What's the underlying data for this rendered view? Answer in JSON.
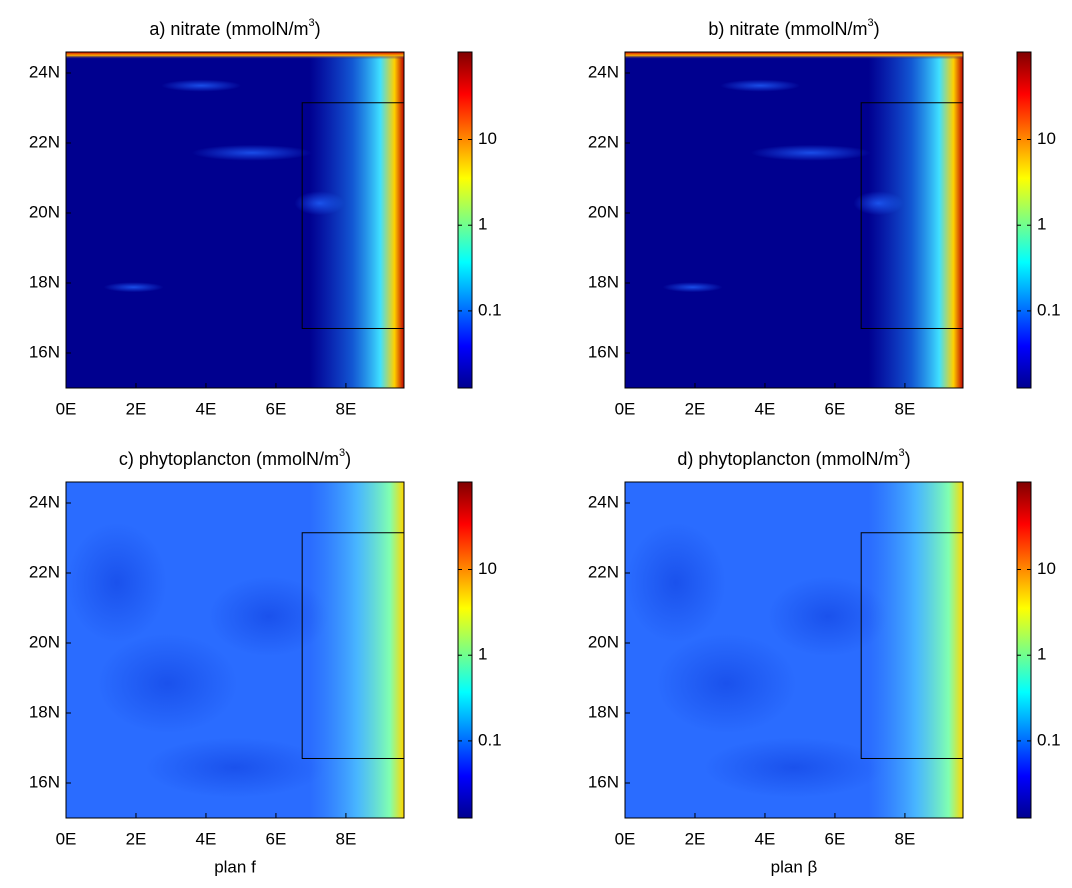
{
  "chart_data": [
    {
      "type": "heatmap",
      "title": "a) nitrate (mmolN/m",
      "title_sup": "3",
      "title_end": ")",
      "xlim": [
        0,
        9.66
      ],
      "ylim": [
        15,
        24.6
      ],
      "xticks": [
        {
          "value": 0,
          "label": "0E"
        },
        {
          "value": 2,
          "label": "2E"
        },
        {
          "value": 4,
          "label": "4E"
        },
        {
          "value": 6,
          "label": "6E"
        },
        {
          "value": 8,
          "label": "8E"
        }
      ],
      "yticks": [
        {
          "value": 16,
          "label": "16N"
        },
        {
          "value": 18,
          "label": "18N"
        },
        {
          "value": 20,
          "label": "20N"
        },
        {
          "value": 22,
          "label": "22N"
        },
        {
          "value": 24,
          "label": "24N"
        }
      ],
      "box": {
        "x": [
          6.75,
          9.66
        ],
        "y": [
          16.7,
          23.15
        ]
      },
      "colorbar": {
        "lim": [
          0.0126,
          105
        ],
        "ticks": [
          0.1,
          1,
          10
        ],
        "log": true
      }
    },
    {
      "type": "heatmap",
      "title": "b) nitrate (mmolN/m",
      "title_sup": "3",
      "title_end": ")",
      "xlim": [
        0,
        9.66
      ],
      "ylim": [
        15,
        24.6
      ],
      "xticks": [
        {
          "value": 0,
          "label": "0E"
        },
        {
          "value": 2,
          "label": "2E"
        },
        {
          "value": 4,
          "label": "4E"
        },
        {
          "value": 6,
          "label": "6E"
        },
        {
          "value": 8,
          "label": "8E"
        }
      ],
      "yticks": [
        {
          "value": 16,
          "label": "16N"
        },
        {
          "value": 18,
          "label": "18N"
        },
        {
          "value": 20,
          "label": "20N"
        },
        {
          "value": 22,
          "label": "22N"
        },
        {
          "value": 24,
          "label": "24N"
        }
      ],
      "box": {
        "x": [
          6.75,
          9.66
        ],
        "y": [
          16.7,
          23.15
        ]
      },
      "colorbar": {
        "lim": [
          0.0126,
          105
        ],
        "ticks": [
          0.1,
          1,
          10
        ],
        "log": true
      }
    },
    {
      "type": "heatmap",
      "title": "c) phytoplancton (mmolN/m",
      "title_sup": "3",
      "title_end": ")",
      "xlabel": "plan f",
      "xlim": [
        0,
        9.66
      ],
      "ylim": [
        15,
        24.6
      ],
      "xticks": [
        {
          "value": 0,
          "label": "0E"
        },
        {
          "value": 2,
          "label": "2E"
        },
        {
          "value": 4,
          "label": "4E"
        },
        {
          "value": 6,
          "label": "6E"
        },
        {
          "value": 8,
          "label": "8E"
        }
      ],
      "yticks": [
        {
          "value": 16,
          "label": "16N"
        },
        {
          "value": 18,
          "label": "18N"
        },
        {
          "value": 20,
          "label": "20N"
        },
        {
          "value": 22,
          "label": "22N"
        },
        {
          "value": 24,
          "label": "24N"
        }
      ],
      "box": {
        "x": [
          6.75,
          9.66
        ],
        "y": [
          16.7,
          23.15
        ]
      },
      "colorbar": {
        "lim": [
          0.0126,
          105
        ],
        "ticks": [
          0.1,
          1,
          10
        ],
        "log": true
      }
    },
    {
      "type": "heatmap",
      "title": "d) phytoplancton (mmolN/m",
      "title_sup": "3",
      "title_end": ")",
      "xlabel": "plan β",
      "xlim": [
        0,
        9.66
      ],
      "ylim": [
        15,
        24.6
      ],
      "xticks": [
        {
          "value": 0,
          "label": "0E"
        },
        {
          "value": 2,
          "label": "2E"
        },
        {
          "value": 4,
          "label": "4E"
        },
        {
          "value": 6,
          "label": "6E"
        },
        {
          "value": 8,
          "label": "8E"
        }
      ],
      "yticks": [
        {
          "value": 16,
          "label": "16N"
        },
        {
          "value": 18,
          "label": "18N"
        },
        {
          "value": 20,
          "label": "20N"
        },
        {
          "value": 22,
          "label": "22N"
        },
        {
          "value": 24,
          "label": "24N"
        }
      ],
      "box": {
        "x": [
          6.75,
          9.66
        ],
        "y": [
          16.7,
          23.15
        ]
      },
      "colorbar": {
        "lim": [
          0.0126,
          105
        ],
        "ticks": [
          0.1,
          1,
          10
        ],
        "log": true
      }
    }
  ]
}
